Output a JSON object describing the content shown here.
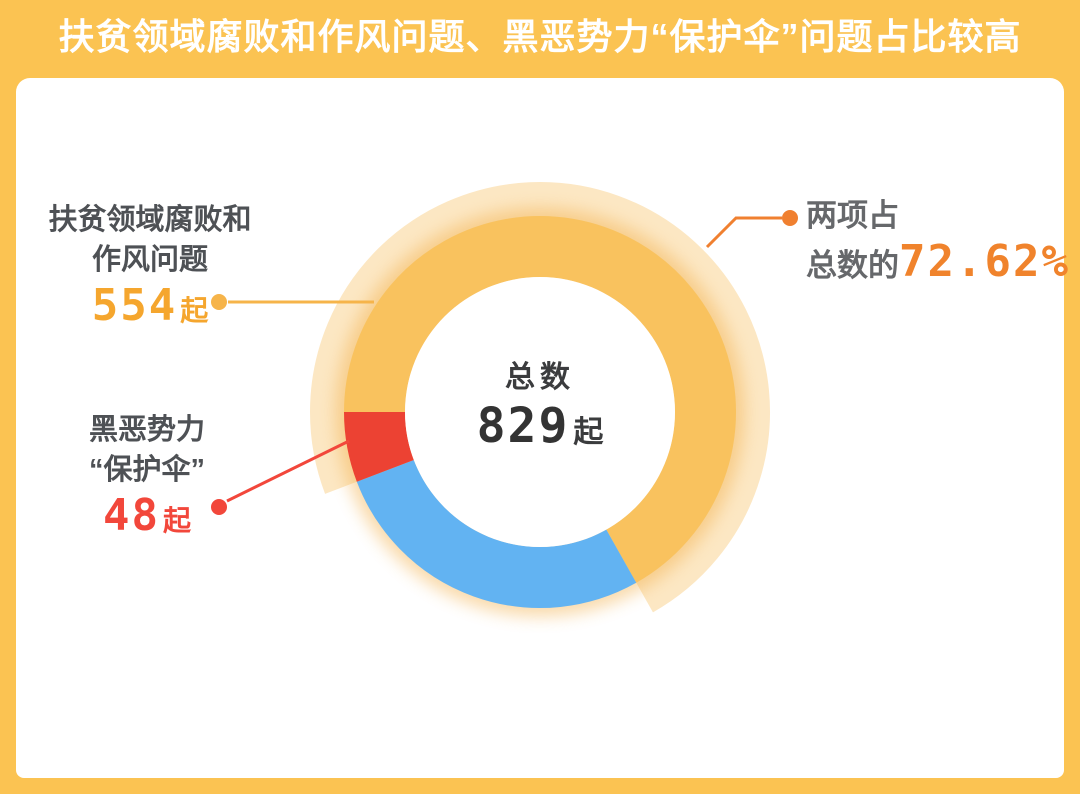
{
  "title": "扶贫领域腐败和作风问题、黑恶势力“保护伞”问题占比较高",
  "chart_data": {
    "type": "donut",
    "title": "扶贫领域腐败和作风问题、黑恶势力“保护伞”问题占比较高",
    "total_value": 829,
    "start_angle_deg": 270,
    "center_label": {
      "text": "总数",
      "value": "829",
      "unit": "起"
    },
    "segments": [
      {
        "key": "poverty-corruption",
        "label": "扶贫领域腐败和作风问题",
        "value": 554,
        "unit": "起",
        "color": "#F9C25E"
      },
      {
        "key": "other",
        "label": "",
        "value": 227,
        "unit": "起",
        "color": "#62B3F2"
      },
      {
        "key": "protection-umbrella",
        "label": "黑恶势力“保护伞”",
        "value": 48,
        "unit": "起",
        "color": "#EC4233"
      }
    ],
    "combined_highlight": {
      "percent": 72.62,
      "band_color": "#FCE7C3",
      "label": "两项占总数的72.62%",
      "covers": [
        "poverty-corruption",
        "protection-umbrella"
      ]
    }
  },
  "callouts": {
    "poverty": {
      "line1": "扶贫领域腐败和",
      "line2": "作风问题",
      "value": "554",
      "unit": "起",
      "accent": "#F5A62E"
    },
    "umbrella": {
      "line1": "黑恶势力",
      "line2": "“保护伞”",
      "value": "48",
      "unit": "起",
      "accent": "#F2473B"
    },
    "combined": {
      "line1": "两项占",
      "prefix": "总数的",
      "value": "72.62%",
      "accent": "#F0832C"
    },
    "center": {
      "label": "总数",
      "value": "829",
      "unit": "起"
    }
  },
  "connectors": {
    "left": {
      "color": "#F6B44A"
    },
    "umbrella": {
      "color": "#F2473B"
    },
    "combined": {
      "color": "#F08030"
    }
  },
  "theme": {
    "frame_color": "#FBC352",
    "card_color": "#FFFFFF",
    "title_color": "#FFFFFF",
    "label_gray_dark": "#4E5155",
    "label_gray_light": "#66686B",
    "center_text_color": "#3B3C3E"
  }
}
